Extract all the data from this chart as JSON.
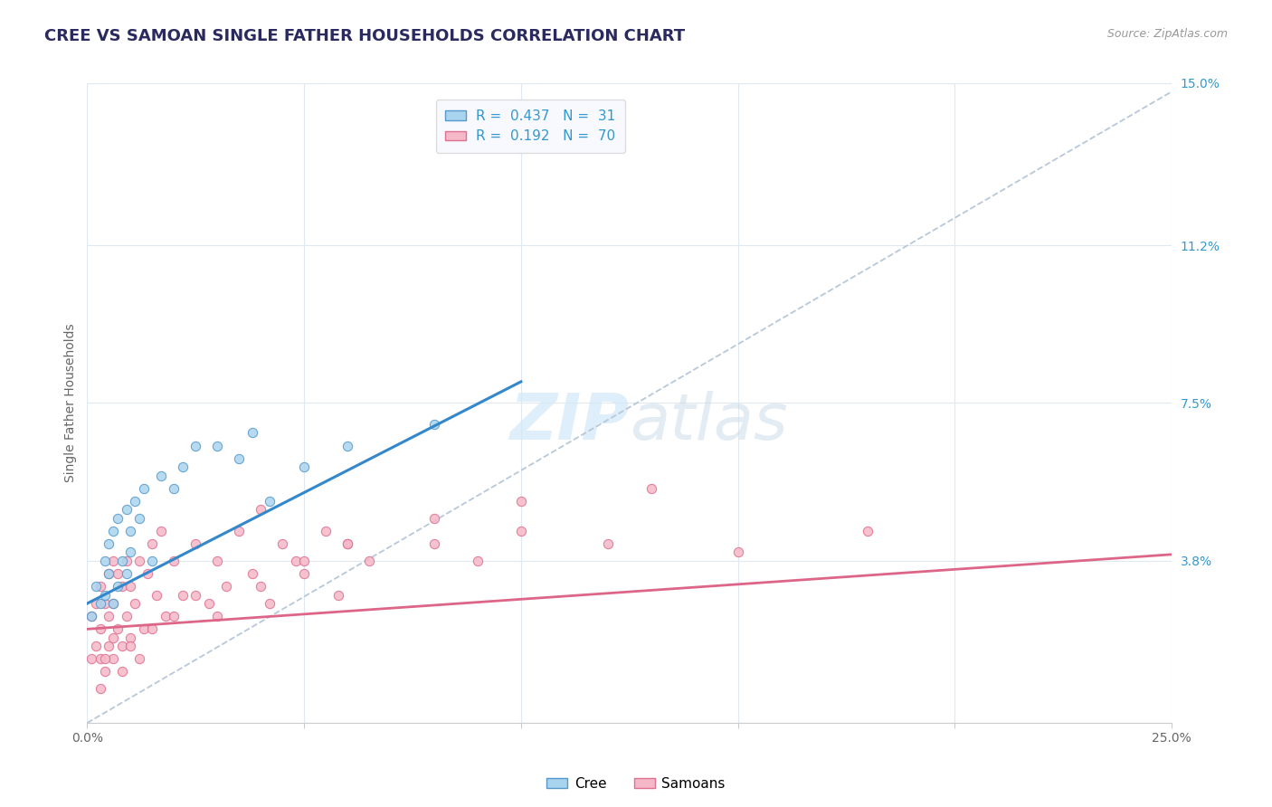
{
  "title": "CREE VS SAMOAN SINGLE FATHER HOUSEHOLDS CORRELATION CHART",
  "source": "Source: ZipAtlas.com",
  "ylabel": "Single Father Households",
  "xlim": [
    0,
    0.25
  ],
  "ylim": [
    0,
    0.15
  ],
  "xtick_positions": [
    0.0,
    0.05,
    0.1,
    0.15,
    0.2,
    0.25
  ],
  "xticklabels": [
    "0.0%",
    "",
    "",
    "",
    "",
    "25.0%"
  ],
  "ytick_right_labels": [
    "15.0%",
    "11.2%",
    "7.5%",
    "3.8%"
  ],
  "ytick_right_values": [
    0.15,
    0.112,
    0.075,
    0.038
  ],
  "cree_R": 0.437,
  "cree_N": 31,
  "samoan_R": 0.192,
  "samoan_N": 70,
  "cree_fill_color": "#aad4ed",
  "samoan_fill_color": "#f5b8c8",
  "cree_edge_color": "#5599cc",
  "samoan_edge_color": "#e07090",
  "cree_line_color": "#3388cc",
  "samoan_line_color": "#dd6688",
  "trend_line_color": "#b8c8d8",
  "background_color": "#ffffff",
  "grid_color": "#e0e8f0",
  "title_color": "#2a2a5e",
  "watermark_color": "#ddeeff",
  "legend_box_color": "#f8f8ff",
  "cree_line_intercept": 0.028,
  "cree_line_slope": 0.52,
  "samoan_line_intercept": 0.022,
  "samoan_line_slope": 0.07,
  "trend_x0": 0.0,
  "trend_y0": 0.0,
  "trend_x1": 0.25,
  "trend_y1": 0.148,
  "cree_scatter_x": [
    0.001,
    0.002,
    0.003,
    0.004,
    0.004,
    0.005,
    0.005,
    0.006,
    0.006,
    0.007,
    0.007,
    0.008,
    0.009,
    0.009,
    0.01,
    0.01,
    0.011,
    0.012,
    0.013,
    0.015,
    0.017,
    0.02,
    0.022,
    0.025,
    0.03,
    0.035,
    0.038,
    0.042,
    0.05,
    0.06,
    0.08
  ],
  "cree_scatter_y": [
    0.025,
    0.032,
    0.028,
    0.038,
    0.03,
    0.035,
    0.042,
    0.028,
    0.045,
    0.032,
    0.048,
    0.038,
    0.035,
    0.05,
    0.04,
    0.045,
    0.052,
    0.048,
    0.055,
    0.038,
    0.058,
    0.055,
    0.06,
    0.065,
    0.065,
    0.062,
    0.068,
    0.052,
    0.06,
    0.065,
    0.07
  ],
  "samoan_scatter_x": [
    0.001,
    0.001,
    0.002,
    0.002,
    0.003,
    0.003,
    0.003,
    0.004,
    0.004,
    0.005,
    0.005,
    0.005,
    0.006,
    0.006,
    0.006,
    0.007,
    0.007,
    0.008,
    0.008,
    0.009,
    0.009,
    0.01,
    0.01,
    0.011,
    0.012,
    0.013,
    0.014,
    0.015,
    0.016,
    0.017,
    0.018,
    0.02,
    0.022,
    0.025,
    0.028,
    0.03,
    0.032,
    0.035,
    0.038,
    0.04,
    0.042,
    0.045,
    0.048,
    0.05,
    0.055,
    0.058,
    0.06,
    0.065,
    0.08,
    0.09,
    0.1,
    0.12,
    0.15,
    0.18,
    0.003,
    0.004,
    0.006,
    0.008,
    0.01,
    0.012,
    0.015,
    0.02,
    0.025,
    0.03,
    0.04,
    0.05,
    0.06,
    0.08,
    0.1,
    0.13
  ],
  "samoan_scatter_y": [
    0.015,
    0.025,
    0.018,
    0.028,
    0.015,
    0.022,
    0.032,
    0.012,
    0.028,
    0.018,
    0.025,
    0.035,
    0.015,
    0.028,
    0.038,
    0.022,
    0.035,
    0.018,
    0.032,
    0.025,
    0.038,
    0.02,
    0.032,
    0.028,
    0.038,
    0.022,
    0.035,
    0.042,
    0.03,
    0.045,
    0.025,
    0.038,
    0.03,
    0.042,
    0.028,
    0.038,
    0.032,
    0.045,
    0.035,
    0.05,
    0.028,
    0.042,
    0.038,
    0.035,
    0.045,
    0.03,
    0.042,
    0.038,
    0.042,
    0.038,
    0.045,
    0.042,
    0.04,
    0.045,
    0.008,
    0.015,
    0.02,
    0.012,
    0.018,
    0.015,
    0.022,
    0.025,
    0.03,
    0.025,
    0.032,
    0.038,
    0.042,
    0.048,
    0.052,
    0.055
  ]
}
